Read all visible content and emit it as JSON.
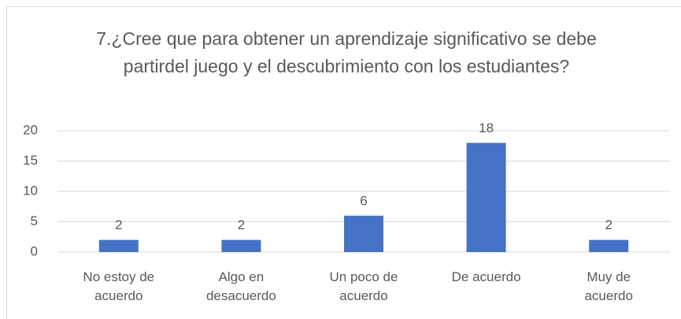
{
  "chart_data": {
    "type": "bar",
    "title": "7.¿Cree que para obtener un aprendizaje significativo se debe partirdel juego y el descubrimiento con los estudiantes?",
    "categories": [
      "No estoy de acuerdo",
      "Algo en desacuerdo",
      "Un poco de acuerdo",
      "De acuerdo",
      "Muy de acuerdo"
    ],
    "values": [
      2,
      2,
      6,
      18,
      2
    ],
    "color": "#4472c4",
    "ylim": [
      0,
      20
    ],
    "yticks": [
      0,
      5,
      10,
      15,
      20
    ],
    "grid": true,
    "data_labels": true
  }
}
